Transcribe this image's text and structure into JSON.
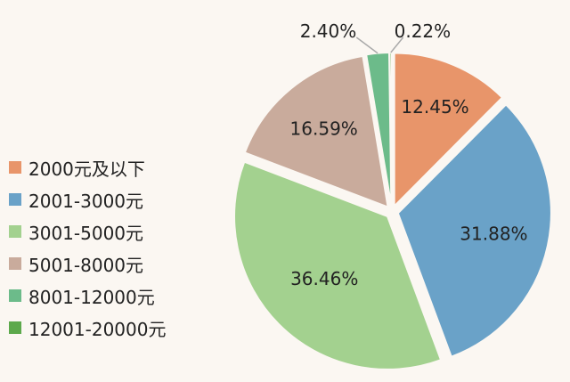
{
  "chart_data": {
    "type": "pie",
    "categories": [
      "2000元及以下",
      "2001-3000元",
      "3001-5000元",
      "5001-8000元",
      "8001-12000元",
      "12001-20000元"
    ],
    "values": [
      12.45,
      31.88,
      36.46,
      16.59,
      2.4,
      0.22
    ],
    "labels": [
      "12.45%",
      "31.88%",
      "36.46%",
      "16.59%",
      "2.40%",
      "0.22%"
    ],
    "colors": [
      "#e8956a",
      "#6aa2c8",
      "#a3d18f",
      "#c9ab9c",
      "#6cbb8a",
      "#5da94c"
    ],
    "legend_position": "left"
  }
}
